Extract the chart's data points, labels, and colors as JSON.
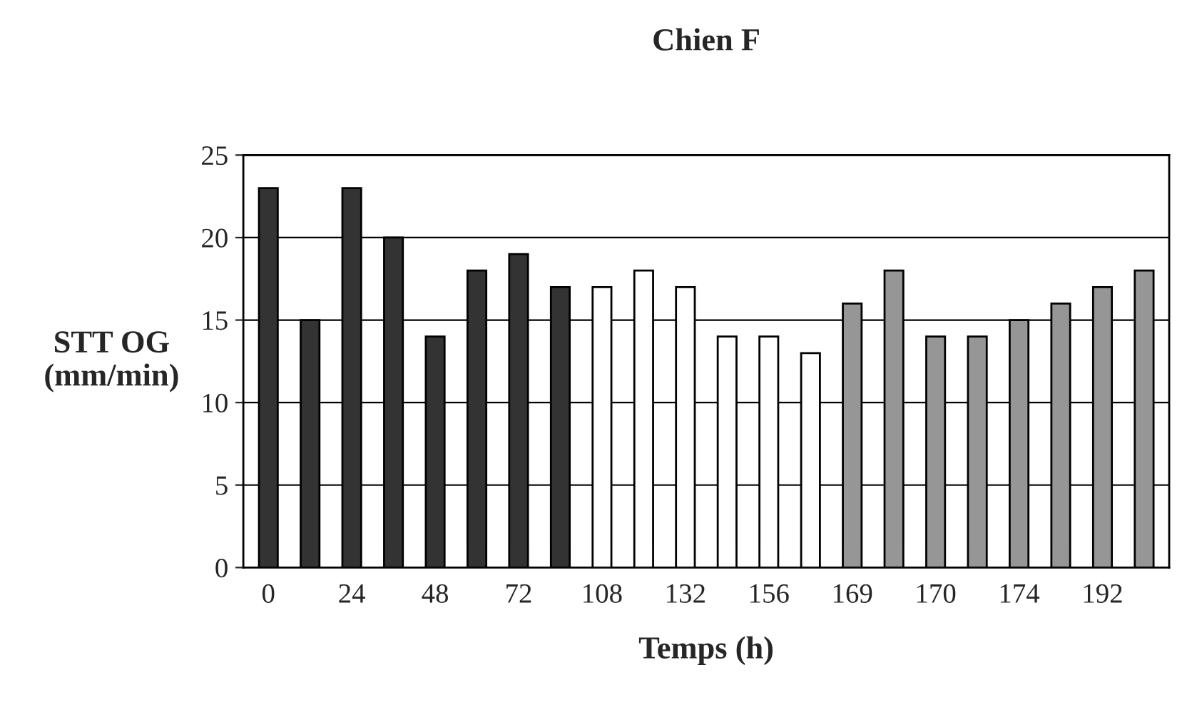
{
  "chart_data": {
    "type": "bar",
    "title": "Chien F",
    "xlabel": "Temps (h)",
    "ylabel": "STT OG\n(mm/min)",
    "categories": [
      "0",
      null,
      "24",
      null,
      "48",
      null,
      "72",
      null,
      "108",
      null,
      "132",
      null,
      "156",
      null,
      "169",
      null,
      "170",
      null,
      "174",
      null,
      "192",
      null
    ],
    "values": [
      23,
      15,
      23,
      20,
      14,
      18,
      19,
      17,
      17,
      18,
      17,
      14,
      14,
      13,
      16,
      18,
      14,
      14,
      15,
      16,
      17,
      18
    ],
    "colors": [
      "#333333",
      "#333333",
      "#333333",
      "#333333",
      "#333333",
      "#333333",
      "#333333",
      "#333333",
      "#ffffff",
      "#ffffff",
      "#ffffff",
      "#ffffff",
      "#ffffff",
      "#ffffff",
      "#969696",
      "#969696",
      "#969696",
      "#969696",
      "#969696",
      "#969696",
      "#969696",
      "#969696"
    ],
    "ylim": [
      0,
      25
    ],
    "yticks": [
      0,
      5,
      10,
      15,
      20,
      25
    ],
    "grid": "y",
    "legend": false
  }
}
